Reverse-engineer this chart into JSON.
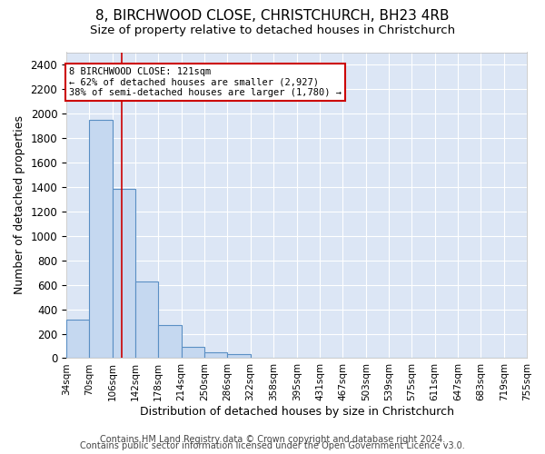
{
  "title": "8, BIRCHWOOD CLOSE, CHRISTCHURCH, BH23 4RB",
  "subtitle": "Size of property relative to detached houses in Christchurch",
  "xlabel": "Distribution of detached houses by size in Christchurch",
  "ylabel": "Number of detached properties",
  "bar_edges": [
    34,
    70,
    106,
    142,
    178,
    214,
    250,
    286,
    322,
    358,
    395,
    431,
    467,
    503,
    539,
    575,
    611,
    647,
    683,
    719,
    755
  ],
  "bar_heights": [
    315,
    1950,
    1380,
    630,
    270,
    95,
    48,
    30,
    0,
    0,
    0,
    0,
    0,
    0,
    0,
    0,
    0,
    0,
    0,
    0
  ],
  "bar_color": "#c5d8f0",
  "bar_edgecolor": "#5a8fc4",
  "ylim": [
    0,
    2500
  ],
  "yticks": [
    0,
    200,
    400,
    600,
    800,
    1000,
    1200,
    1400,
    1600,
    1800,
    2000,
    2200,
    2400
  ],
  "property_size": 121,
  "red_line_color": "#cc0000",
  "annotation_text": "8 BIRCHWOOD CLOSE: 121sqm\n← 62% of detached houses are smaller (2,927)\n38% of semi-detached houses are larger (1,780) →",
  "annotation_box_color": "#ffffff",
  "annotation_box_edgecolor": "#cc0000",
  "footer_line1": "Contains HM Land Registry data © Crown copyright and database right 2024.",
  "footer_line2": "Contains public sector information licensed under the Open Government Licence v3.0.",
  "plot_bg_color": "#dce6f5",
  "grid_color": "#ffffff",
  "title_fontsize": 11,
  "subtitle_fontsize": 9.5,
  "xlabel_fontsize": 9,
  "ylabel_fontsize": 9,
  "footer_fontsize": 7,
  "tick_labels": [
    "34sqm",
    "70sqm",
    "106sqm",
    "142sqm",
    "178sqm",
    "214sqm",
    "250sqm",
    "286sqm",
    "322sqm",
    "358sqm",
    "395sqm",
    "431sqm",
    "467sqm",
    "503sqm",
    "539sqm",
    "575sqm",
    "611sqm",
    "647sqm",
    "683sqm",
    "719sqm",
    "755sqm"
  ]
}
